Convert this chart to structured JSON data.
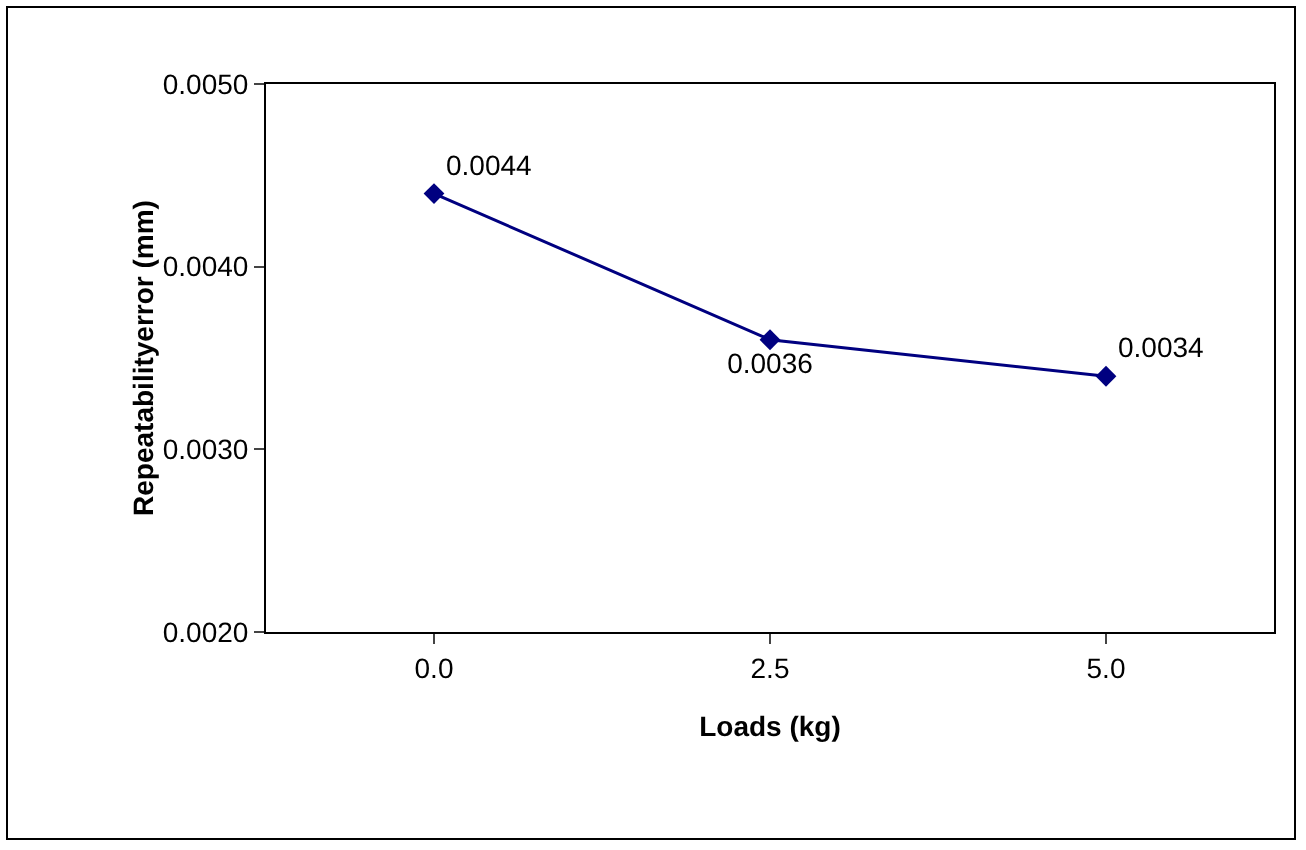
{
  "chart_data": {
    "type": "line",
    "xlabel": "Loads (kg)",
    "ylabel": "Repeatabilityerror (mm)",
    "categories": [
      "0.0",
      "2.5",
      "5.0"
    ],
    "series": [
      {
        "color": "#000080",
        "values": [
          0.0044,
          0.0036,
          0.0034
        ]
      }
    ],
    "ylim": [
      0.002,
      0.005
    ],
    "yticks": [
      {
        "value": 0.002,
        "label": "0.0020"
      },
      {
        "value": 0.003,
        "label": "0.0030"
      },
      {
        "value": 0.004,
        "label": "0.0040"
      },
      {
        "value": 0.005,
        "label": "0.0050"
      }
    ],
    "grid": false,
    "marker": "diamond",
    "line_style": "solid",
    "data_labels": true
  }
}
